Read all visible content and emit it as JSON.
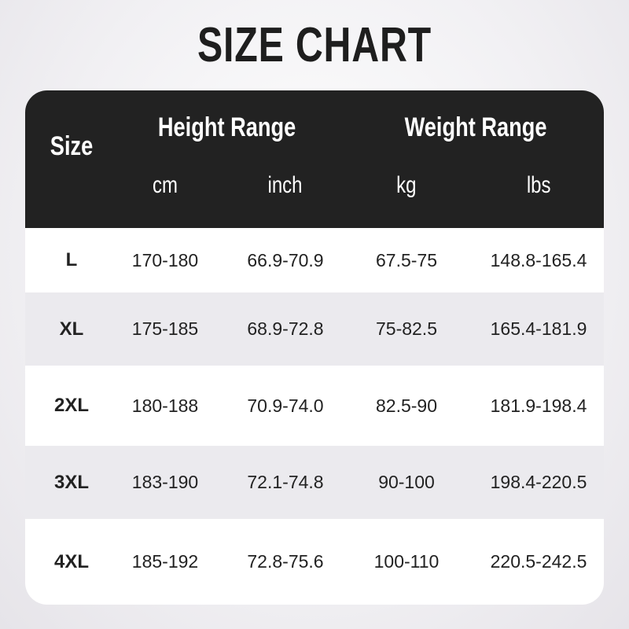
{
  "title": "SIZE CHART",
  "header": {
    "size": "Size",
    "height_range": "Height Range",
    "weight_range": "Weight Range",
    "units": [
      "cm",
      "inch",
      "kg",
      "lbs"
    ]
  },
  "rows": [
    {
      "size": "L",
      "cm": "170-180",
      "inch": "66.9-70.9",
      "kg": "67.5-75",
      "lbs": "148.8-165.4"
    },
    {
      "size": "XL",
      "cm": "175-185",
      "inch": "68.9-72.8",
      "kg": "75-82.5",
      "lbs": "165.4-181.9"
    },
    {
      "size": "2XL",
      "cm": "180-188",
      "inch": "70.9-74.0",
      "kg": "82.5-90",
      "lbs": "181.9-198.4"
    },
    {
      "size": "3XL",
      "cm": "183-190",
      "inch": "72.1-74.8",
      "kg": "90-100",
      "lbs": "198.4-220.5"
    },
    {
      "size": "4XL",
      "cm": "185-192",
      "inch": "72.8-75.6",
      "kg": "100-110",
      "lbs": "220.5-242.5"
    }
  ],
  "colors": {
    "header_bg": "#222222",
    "row_alt": "#ebeaee",
    "row": "#ffffff"
  }
}
